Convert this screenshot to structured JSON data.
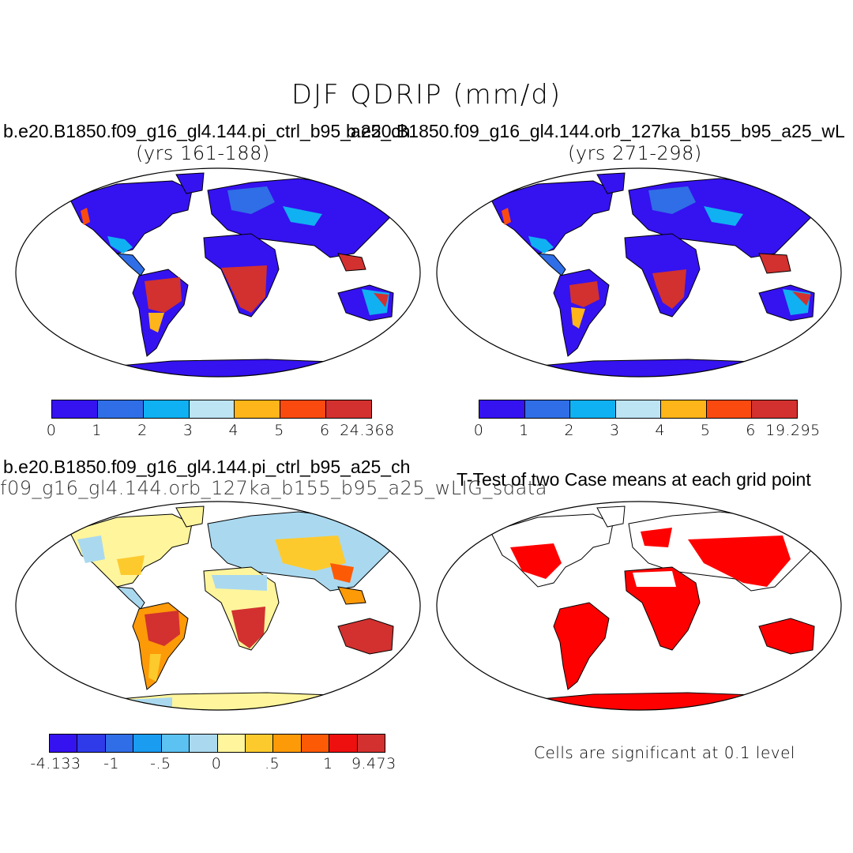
{
  "figure": {
    "title": "DJF QDRIP (mm/d)"
  },
  "panels": [
    {
      "title": "b.e20.B1850.f09_g16_gl4.144.pi_ctrl_b95_a25_ch",
      "subtitle": "(yrs 161-188)",
      "colorbar": {
        "ticks": [
          "0",
          "1",
          "2",
          "3",
          "4",
          "5",
          "6",
          "24.368"
        ],
        "colors": [
          "#3512f0",
          "#2f6ee6",
          "#10b1f2",
          "#bde4f3",
          "#fdb51a",
          "#fb4a10",
          "#d2312f"
        ]
      }
    },
    {
      "title": "b.e20.B1850.f09_g16_gl4.144.orb_127ka_b155_b95_a25_wL",
      "subtitle": "(yrs 271-298)",
      "colorbar": {
        "ticks": [
          "0",
          "1",
          "2",
          "3",
          "4",
          "5",
          "6",
          "19.295"
        ],
        "colors": [
          "#3512f0",
          "#2f6ee6",
          "#10b1f2",
          "#bde4f3",
          "#fdb51a",
          "#fb4a10",
          "#d2312f"
        ]
      }
    },
    {
      "title": "b.e20.B1850.f09_g16_gl4.144.pi_ctrl_b95_a25_ch",
      "subtitle": "f09_g16_gl4.144.orb_127ka_b155_b95_a25_wLIG_sdata",
      "colorbar": {
        "ticks": [
          "-4.133",
          "-1",
          "-.5",
          "0",
          ".5",
          "1",
          "9.473"
        ],
        "colors": [
          "#3512f0",
          "#2f3ae8",
          "#2f6ee6",
          "#1a9cf0",
          "#5cc2f2",
          "#aad9ef",
          "#fff59c",
          "#fdca2e",
          "#fd9a08",
          "#fd5a06",
          "#ee0f0f",
          "#d2312f"
        ]
      }
    },
    {
      "title": "T-Test of two Case means at each grid point",
      "note": "Cells are significant at 0.1 level",
      "significant_color": "#ff0000"
    }
  ]
}
